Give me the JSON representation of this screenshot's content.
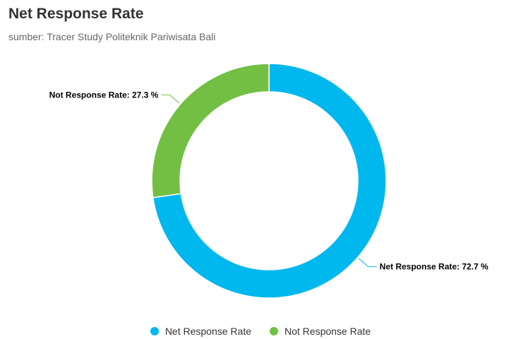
{
  "chart_data": {
    "type": "pie",
    "title": "Net Response Rate",
    "subtitle": "sumber: Tracer Study Politeknik Pariwisata Bali",
    "series": [
      {
        "name": "Net Response Rate",
        "value": 72.7,
        "label": "Net Response Rate: 72.7 %",
        "color": "#00b7ee"
      },
      {
        "name": "Not Response Rate",
        "value": 27.3,
        "label": "Not Response Rate: 27.3 %",
        "color": "#72bf44"
      }
    ],
    "donut": true,
    "legend_position": "bottom-center"
  }
}
